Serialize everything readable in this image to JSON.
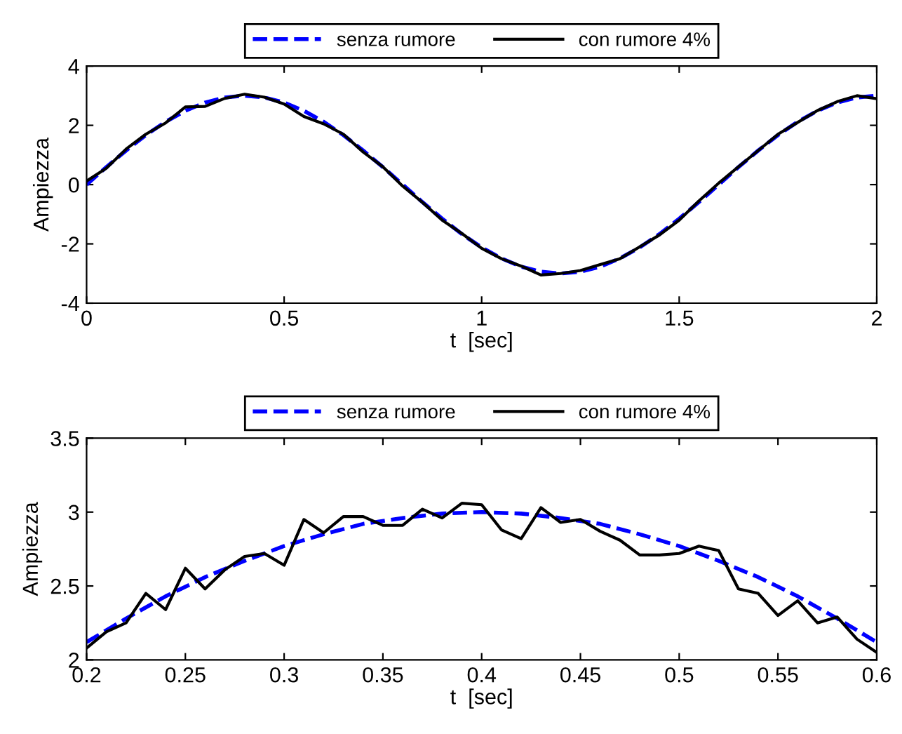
{
  "chart_data": [
    {
      "type": "line",
      "xlabel": "t  [sec]",
      "ylabel": "Ampiezza",
      "legend": "top",
      "grid": false,
      "xlim": [
        0,
        2
      ],
      "ylim": [
        -4,
        4
      ],
      "xticks": [
        0,
        0.5,
        1,
        1.5,
        2
      ],
      "yticks": [
        -4,
        -2,
        0,
        2,
        4
      ],
      "series": [
        {
          "name": "senza rumore",
          "color": "#0000ff",
          "line_style": "dashed",
          "x": [
            0,
            0.05,
            0.1,
            0.15,
            0.2,
            0.25,
            0.3,
            0.35,
            0.4,
            0.45,
            0.5,
            0.55,
            0.6,
            0.65,
            0.7,
            0.75,
            0.8,
            0.85,
            0.9,
            0.95,
            1.0,
            1.05,
            1.1,
            1.15,
            1.2,
            1.25,
            1.3,
            1.35,
            1.4,
            1.45,
            1.5,
            1.55,
            1.6,
            1.65,
            1.7,
            1.75,
            1.8,
            1.85,
            1.9,
            1.95,
            2.0
          ],
          "values": [
            0,
            0.59,
            1.15,
            1.67,
            2.12,
            2.49,
            2.77,
            2.94,
            3,
            2.94,
            2.77,
            2.49,
            2.12,
            1.67,
            1.15,
            0.59,
            0,
            -0.59,
            -1.15,
            -1.67,
            -2.12,
            -2.49,
            -2.77,
            -2.94,
            -3,
            -2.94,
            -2.77,
            -2.49,
            -2.12,
            -1.67,
            -1.15,
            -0.59,
            0,
            0.59,
            1.15,
            1.67,
            2.12,
            2.49,
            2.77,
            2.94,
            3
          ]
        },
        {
          "name": "con rumore 4%",
          "color": "#000000",
          "line_style": "solid",
          "x": [
            0,
            0.05,
            0.1,
            0.15,
            0.2,
            0.25,
            0.3,
            0.35,
            0.4,
            0.45,
            0.5,
            0.55,
            0.6,
            0.65,
            0.7,
            0.75,
            0.8,
            0.85,
            0.9,
            0.95,
            1.0,
            1.05,
            1.1,
            1.15,
            1.2,
            1.25,
            1.3,
            1.35,
            1.4,
            1.45,
            1.5,
            1.55,
            1.6,
            1.65,
            1.7,
            1.75,
            1.8,
            1.85,
            1.9,
            1.95,
            2.0
          ],
          "values": [
            0.12,
            0.55,
            1.2,
            1.7,
            2.08,
            2.62,
            2.64,
            2.91,
            3.05,
            2.95,
            2.72,
            2.3,
            2.05,
            1.7,
            1.1,
            0.6,
            -0.05,
            -0.6,
            -1.2,
            -1.65,
            -2.15,
            -2.5,
            -2.75,
            -3.05,
            -3.0,
            -2.9,
            -2.7,
            -2.5,
            -2.1,
            -1.7,
            -1.2,
            -0.55,
            0.05,
            0.6,
            1.15,
            1.7,
            2.1,
            2.5,
            2.8,
            3.0,
            2.9
          ]
        }
      ]
    },
    {
      "type": "line",
      "xlabel": "t  [sec]",
      "ylabel": "Ampiezza",
      "legend": "top",
      "grid": false,
      "xlim": [
        0.2,
        0.6
      ],
      "ylim": [
        2,
        3.5
      ],
      "xticks": [
        0.2,
        0.25,
        0.3,
        0.35,
        0.4,
        0.45,
        0.5,
        0.55,
        0.6
      ],
      "yticks": [
        2,
        2.5,
        3,
        3.5
      ],
      "series": [
        {
          "name": "senza rumore",
          "color": "#0000ff",
          "line_style": "dashed",
          "x": [
            0.2,
            0.22,
            0.24,
            0.26,
            0.28,
            0.3,
            0.32,
            0.34,
            0.36,
            0.38,
            0.4,
            0.42,
            0.44,
            0.46,
            0.48,
            0.5,
            0.52,
            0.54,
            0.56,
            0.58,
            0.6
          ],
          "values": [
            2.12,
            2.28,
            2.43,
            2.56,
            2.67,
            2.77,
            2.85,
            2.92,
            2.96,
            2.99,
            3.0,
            2.99,
            2.96,
            2.92,
            2.85,
            2.77,
            2.67,
            2.56,
            2.43,
            2.28,
            2.12
          ]
        },
        {
          "name": "con rumore 4%",
          "color": "#000000",
          "line_style": "solid",
          "x": [
            0.2,
            0.21,
            0.22,
            0.23,
            0.24,
            0.25,
            0.26,
            0.27,
            0.28,
            0.29,
            0.3,
            0.31,
            0.32,
            0.33,
            0.34,
            0.35,
            0.36,
            0.37,
            0.38,
            0.39,
            0.4,
            0.41,
            0.42,
            0.43,
            0.44,
            0.45,
            0.46,
            0.47,
            0.48,
            0.49,
            0.5,
            0.51,
            0.52,
            0.53,
            0.54,
            0.55,
            0.56,
            0.57,
            0.58,
            0.59,
            0.6
          ],
          "values": [
            2.08,
            2.19,
            2.25,
            2.45,
            2.34,
            2.62,
            2.48,
            2.61,
            2.7,
            2.72,
            2.64,
            2.95,
            2.86,
            2.97,
            2.97,
            2.91,
            2.91,
            3.02,
            2.96,
            3.06,
            3.05,
            2.88,
            2.82,
            3.03,
            2.93,
            2.95,
            2.87,
            2.81,
            2.71,
            2.71,
            2.72,
            2.77,
            2.74,
            2.48,
            2.45,
            2.3,
            2.4,
            2.25,
            2.29,
            2.14,
            2.05
          ]
        }
      ]
    }
  ]
}
